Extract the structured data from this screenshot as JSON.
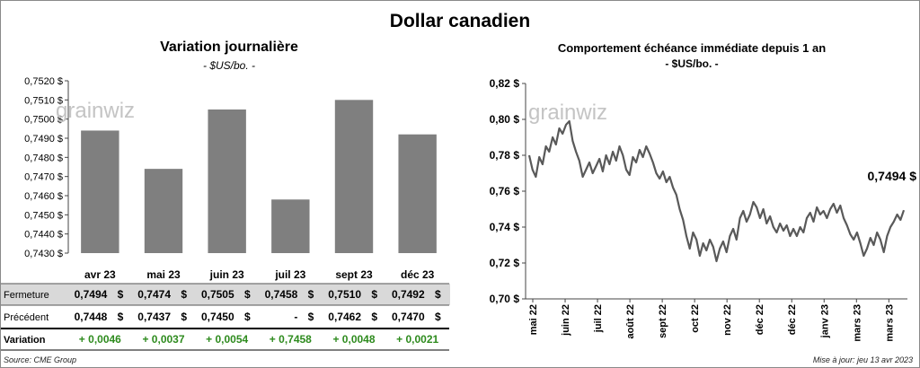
{
  "title": "Dollar canadien",
  "left": {
    "title": "Variation  journalière",
    "unit": "- $US/bo. -",
    "watermark": "grainwiz",
    "chart_data": {
      "type": "bar",
      "categories": [
        "avr 23",
        "mai 23",
        "juin 23",
        "juil 23",
        "sept 23",
        "déc 23"
      ],
      "values": [
        0.7494,
        0.7474,
        0.7505,
        0.7458,
        0.751,
        0.7492
      ],
      "ylim": [
        0.743,
        0.752
      ],
      "yticks": [
        "0,7430 $",
        "0,7440 $",
        "0,7450 $",
        "0,7460 $",
        "0,7470 $",
        "0,7480 $",
        "0,7490 $",
        "0,7500 $",
        "0,7510 $",
        "0,7520 $"
      ],
      "bar_color": "#7f7f7f",
      "grid": false
    },
    "table": {
      "rows": [
        {
          "label": "Fermeture",
          "cells": [
            "0,7494",
            "0,7474",
            "0,7505",
            "0,7458",
            "0,7510",
            "0,7492"
          ],
          "suffix": "$"
        },
        {
          "label": "Précédent",
          "cells": [
            "0,7448",
            "0,7437",
            "0,7450",
            "-",
            "0,7462",
            "0,7470"
          ],
          "suffix": "$"
        },
        {
          "label": "Variation",
          "cells": [
            "+ 0,0046",
            "+ 0,0037",
            "+ 0,0054",
            "+ 0,7458",
            "+ 0,0048",
            "+ 0,0021"
          ],
          "suffix": ""
        }
      ],
      "fermeture_bg": "#d9d9d9",
      "variation_color": "#2e8b1e"
    }
  },
  "right": {
    "title": "Comportement échéance immédiate depuis 1 an",
    "unit": "- $US/bo. -",
    "watermark": "grainwiz",
    "chart_data": {
      "type": "line",
      "ylim": [
        0.7,
        0.82
      ],
      "yticks": [
        "0,70 $",
        "0,72 $",
        "0,74 $",
        "0,76 $",
        "0,78 $",
        "0,80 $",
        "0,82 $"
      ],
      "xticks": [
        "mai 22",
        "juin 22",
        "juil 22",
        "août 22",
        "sept 22",
        "oct 22",
        "nov 22",
        "déc 22",
        "déc 22",
        "janv 23",
        "mars 23",
        "mars 23"
      ],
      "series": [
        {
          "values": [
            0.78,
            0.772,
            0.768,
            0.779,
            0.775,
            0.785,
            0.782,
            0.79,
            0.786,
            0.795,
            0.792,
            0.797,
            0.799,
            0.788,
            0.782,
            0.777,
            0.768,
            0.772,
            0.776,
            0.77,
            0.774,
            0.778,
            0.771,
            0.78,
            0.775,
            0.782,
            0.777,
            0.785,
            0.78,
            0.772,
            0.769,
            0.779,
            0.776,
            0.783,
            0.779,
            0.785,
            0.781,
            0.776,
            0.77,
            0.767,
            0.771,
            0.765,
            0.768,
            0.762,
            0.758,
            0.75,
            0.744,
            0.735,
            0.728,
            0.737,
            0.733,
            0.724,
            0.731,
            0.727,
            0.733,
            0.729,
            0.721,
            0.728,
            0.732,
            0.726,
            0.735,
            0.739,
            0.733,
            0.745,
            0.749,
            0.743,
            0.747,
            0.754,
            0.751,
            0.745,
            0.75,
            0.742,
            0.746,
            0.74,
            0.737,
            0.742,
            0.738,
            0.741,
            0.735,
            0.739,
            0.735,
            0.74,
            0.737,
            0.745,
            0.748,
            0.743,
            0.751,
            0.747,
            0.749,
            0.745,
            0.75,
            0.753,
            0.748,
            0.752,
            0.745,
            0.741,
            0.736,
            0.733,
            0.737,
            0.731,
            0.724,
            0.728,
            0.734,
            0.73,
            0.737,
            0.733,
            0.726,
            0.735,
            0.74,
            0.743,
            0.747,
            0.744,
            0.7494
          ],
          "color": "#595959"
        }
      ],
      "last_label": "0,7494 $",
      "grid": false
    }
  },
  "source": "Source: CME Group",
  "updated": "Mise à jour: jeu 13 avr 2023"
}
